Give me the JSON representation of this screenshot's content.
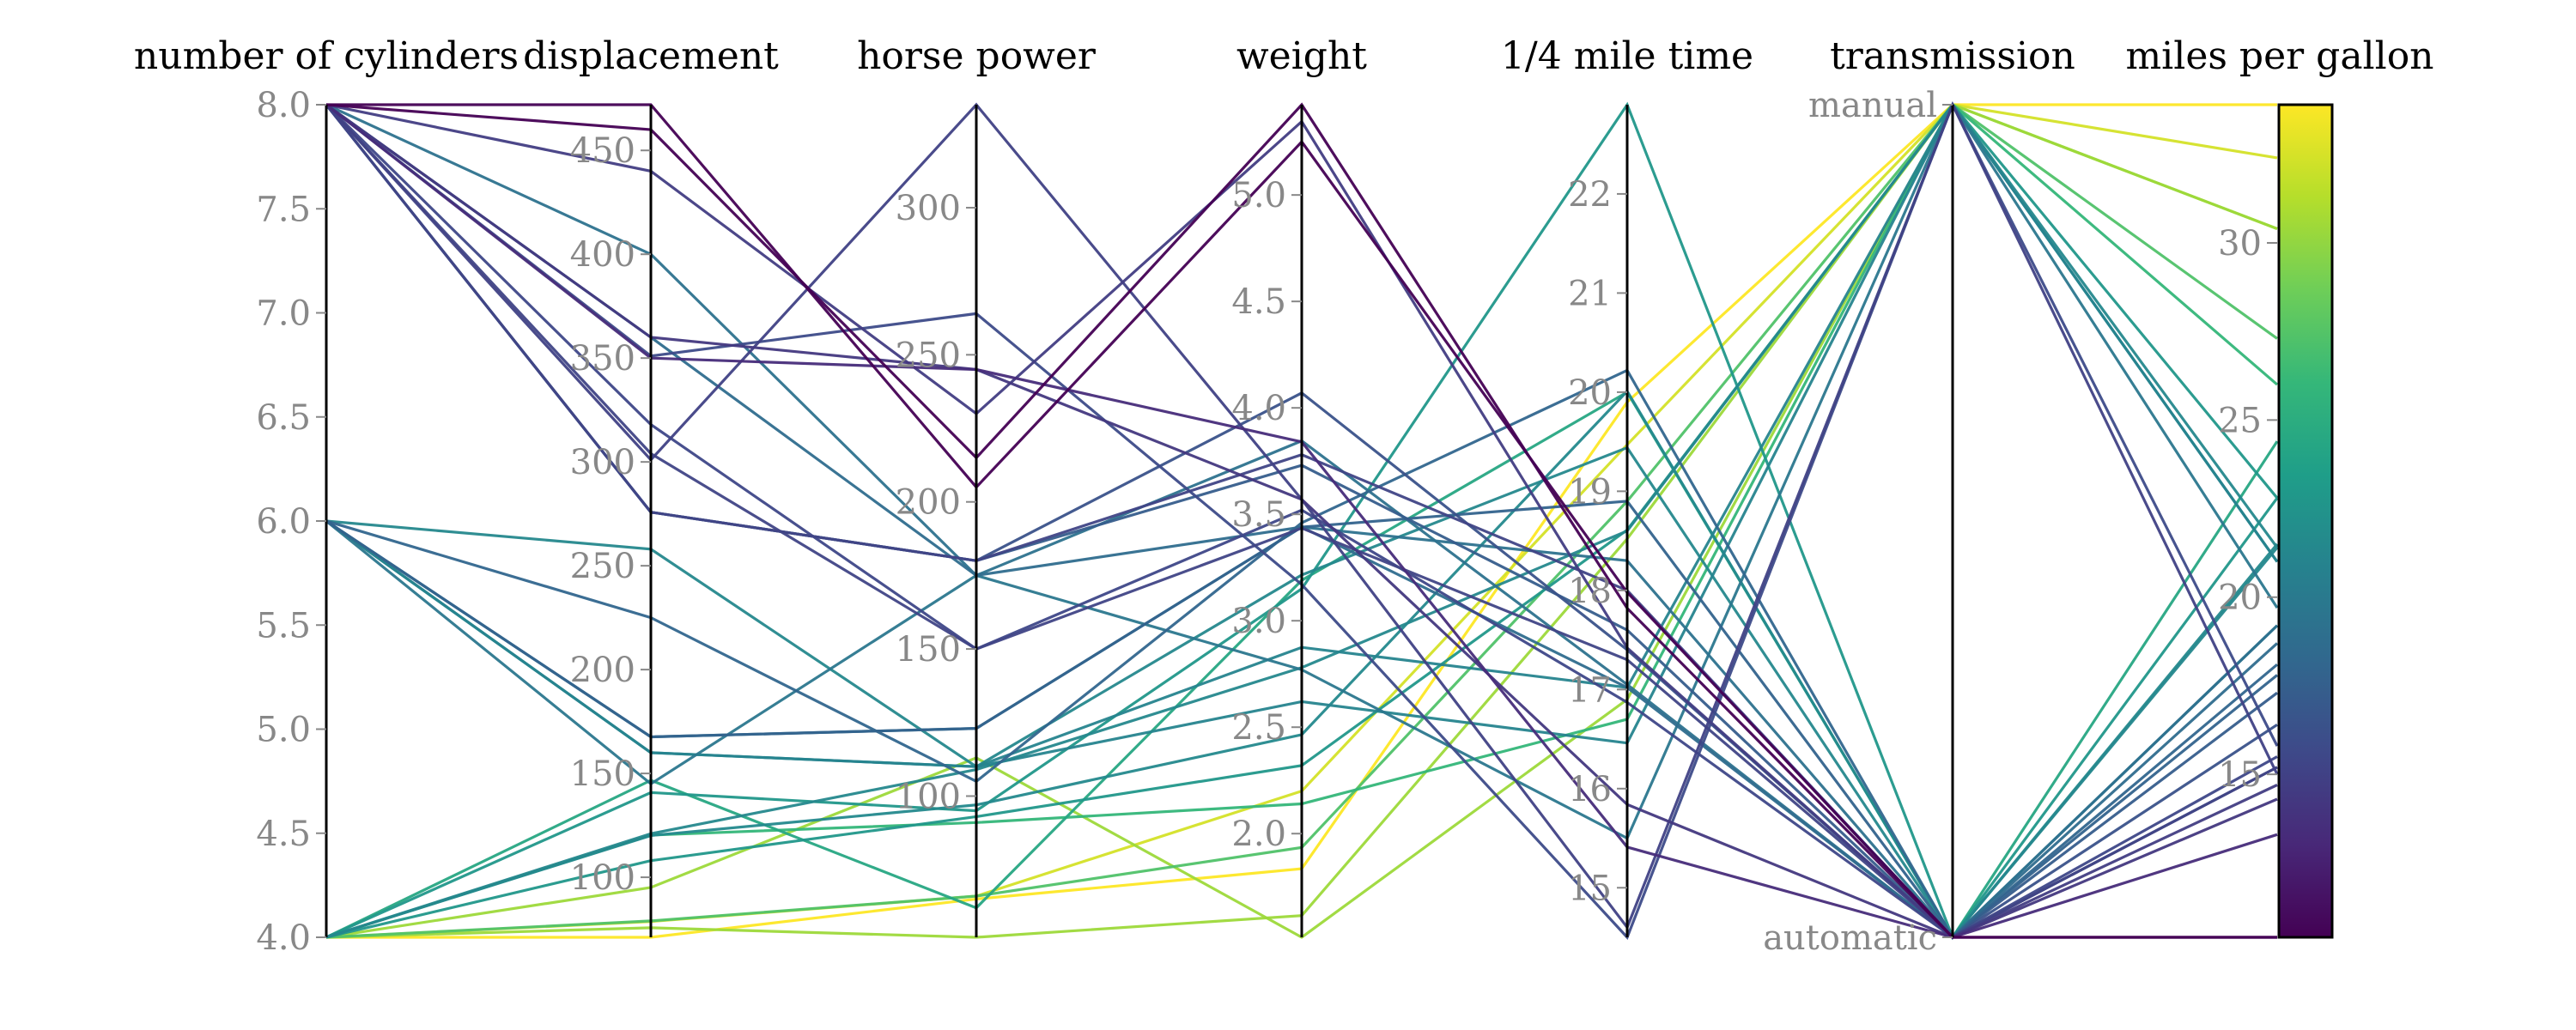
{
  "chart_data": {
    "type": "parallel_coordinates",
    "title": "",
    "axes": [
      {
        "key": "cyl",
        "label": "number of cylinders",
        "range": [
          4.0,
          8.0
        ],
        "ticks": [
          4.0,
          4.5,
          5.0,
          5.5,
          6.0,
          6.5,
          7.0,
          7.5,
          8.0
        ],
        "tick_labels": [
          "4.0",
          "4.5",
          "5.0",
          "5.5",
          "6.0",
          "6.5",
          "7.0",
          "7.5",
          "8.0"
        ]
      },
      {
        "key": "disp",
        "label": "displacement",
        "range": [
          71.1,
          472.0
        ],
        "ticks": [
          100,
          150,
          200,
          250,
          300,
          350,
          400,
          450
        ],
        "tick_labels": [
          "100",
          "150",
          "200",
          "250",
          "300",
          "350",
          "400",
          "450"
        ]
      },
      {
        "key": "hp",
        "label": "horse power",
        "range": [
          52,
          335
        ],
        "ticks": [
          100,
          150,
          200,
          250,
          300
        ],
        "tick_labels": [
          "100",
          "150",
          "200",
          "250",
          "300"
        ]
      },
      {
        "key": "wt",
        "label": "weight",
        "range": [
          1.513,
          5.424
        ],
        "ticks": [
          2.0,
          2.5,
          3.0,
          3.5,
          4.0,
          4.5,
          5.0
        ],
        "tick_labels": [
          "2.0",
          "2.5",
          "3.0",
          "3.5",
          "4.0",
          "4.5",
          "5.0"
        ]
      },
      {
        "key": "qsec",
        "label": "1/4 mile time",
        "range": [
          14.5,
          22.9
        ],
        "ticks": [
          15,
          16,
          17,
          18,
          19,
          20,
          21,
          22
        ],
        "tick_labels": [
          "15",
          "16",
          "17",
          "18",
          "19",
          "20",
          "21",
          "22"
        ]
      },
      {
        "key": "am",
        "label": "transmission",
        "range": [
          0,
          1
        ],
        "ticks": [
          0,
          1
        ],
        "tick_labels": [
          "automatic",
          "manual"
        ]
      },
      {
        "key": "mpg",
        "label": "miles per gallon",
        "range": [
          10.4,
          33.9
        ],
        "ticks": [
          15,
          20,
          25,
          30
        ],
        "tick_labels": [
          "15",
          "20",
          "25",
          "30"
        ]
      }
    ],
    "color_by": "mpg",
    "colormap": [
      "#440154",
      "#482878",
      "#3e4989",
      "#31688e",
      "#26828e",
      "#1f9e89",
      "#35b779",
      "#6ece58",
      "#b5de2b",
      "#fde725"
    ],
    "records": [
      {
        "cyl": 6,
        "disp": 160.0,
        "hp": 110,
        "wt": 2.62,
        "qsec": 16.46,
        "am": 1,
        "mpg": 21.0
      },
      {
        "cyl": 6,
        "disp": 160.0,
        "hp": 110,
        "wt": 2.875,
        "qsec": 17.02,
        "am": 1,
        "mpg": 21.0
      },
      {
        "cyl": 4,
        "disp": 108.0,
        "hp": 93,
        "wt": 2.32,
        "qsec": 18.61,
        "am": 1,
        "mpg": 22.8
      },
      {
        "cyl": 6,
        "disp": 258.0,
        "hp": 110,
        "wt": 3.215,
        "qsec": 19.44,
        "am": 0,
        "mpg": 21.4
      },
      {
        "cyl": 8,
        "disp": 360.0,
        "hp": 175,
        "wt": 3.44,
        "qsec": 17.02,
        "am": 0,
        "mpg": 18.7
      },
      {
        "cyl": 6,
        "disp": 225.0,
        "hp": 105,
        "wt": 3.46,
        "qsec": 20.22,
        "am": 0,
        "mpg": 18.1
      },
      {
        "cyl": 8,
        "disp": 360.0,
        "hp": 245,
        "wt": 3.57,
        "qsec": 15.84,
        "am": 0,
        "mpg": 14.3
      },
      {
        "cyl": 4,
        "disp": 146.7,
        "hp": 62,
        "wt": 3.19,
        "qsec": 20.0,
        "am": 0,
        "mpg": 24.4
      },
      {
        "cyl": 4,
        "disp": 140.8,
        "hp": 95,
        "wt": 3.15,
        "qsec": 22.9,
        "am": 0,
        "mpg": 22.8
      },
      {
        "cyl": 6,
        "disp": 167.6,
        "hp": 123,
        "wt": 3.44,
        "qsec": 18.3,
        "am": 0,
        "mpg": 19.2
      },
      {
        "cyl": 6,
        "disp": 167.6,
        "hp": 123,
        "wt": 3.44,
        "qsec": 18.9,
        "am": 0,
        "mpg": 17.8
      },
      {
        "cyl": 8,
        "disp": 275.8,
        "hp": 180,
        "wt": 4.07,
        "qsec": 17.4,
        "am": 0,
        "mpg": 16.4
      },
      {
        "cyl": 8,
        "disp": 275.8,
        "hp": 180,
        "wt": 3.73,
        "qsec": 17.6,
        "am": 0,
        "mpg": 17.3
      },
      {
        "cyl": 8,
        "disp": 275.8,
        "hp": 180,
        "wt": 3.78,
        "qsec": 18.0,
        "am": 0,
        "mpg": 15.2
      },
      {
        "cyl": 8,
        "disp": 472.0,
        "hp": 205,
        "wt": 5.25,
        "qsec": 17.98,
        "am": 0,
        "mpg": 10.4
      },
      {
        "cyl": 8,
        "disp": 460.0,
        "hp": 215,
        "wt": 5.424,
        "qsec": 17.82,
        "am": 0,
        "mpg": 10.4
      },
      {
        "cyl": 8,
        "disp": 440.0,
        "hp": 230,
        "wt": 5.345,
        "qsec": 17.42,
        "am": 0,
        "mpg": 14.7
      },
      {
        "cyl": 4,
        "disp": 78.7,
        "hp": 66,
        "wt": 2.2,
        "qsec": 19.47,
        "am": 1,
        "mpg": 32.4
      },
      {
        "cyl": 4,
        "disp": 75.7,
        "hp": 52,
        "wt": 1.615,
        "qsec": 18.52,
        "am": 1,
        "mpg": 30.4
      },
      {
        "cyl": 4,
        "disp": 71.1,
        "hp": 65,
        "wt": 1.835,
        "qsec": 19.9,
        "am": 1,
        "mpg": 33.9
      },
      {
        "cyl": 4,
        "disp": 120.1,
        "hp": 97,
        "wt": 2.465,
        "qsec": 20.01,
        "am": 0,
        "mpg": 21.5
      },
      {
        "cyl": 8,
        "disp": 318.0,
        "hp": 150,
        "wt": 3.52,
        "qsec": 16.87,
        "am": 0,
        "mpg": 15.5
      },
      {
        "cyl": 8,
        "disp": 304.0,
        "hp": 150,
        "wt": 3.435,
        "qsec": 17.3,
        "am": 0,
        "mpg": 15.2
      },
      {
        "cyl": 8,
        "disp": 350.0,
        "hp": 245,
        "wt": 3.84,
        "qsec": 15.41,
        "am": 0,
        "mpg": 13.3
      },
      {
        "cyl": 8,
        "disp": 400.0,
        "hp": 175,
        "wt": 3.845,
        "qsec": 17.05,
        "am": 0,
        "mpg": 19.2
      },
      {
        "cyl": 4,
        "disp": 79.0,
        "hp": 66,
        "wt": 1.935,
        "qsec": 18.9,
        "am": 1,
        "mpg": 27.3
      },
      {
        "cyl": 4,
        "disp": 120.3,
        "hp": 91,
        "wt": 2.14,
        "qsec": 16.7,
        "am": 1,
        "mpg": 26.0
      },
      {
        "cyl": 4,
        "disp": 95.1,
        "hp": 113,
        "wt": 1.513,
        "qsec": 16.9,
        "am": 1,
        "mpg": 30.4
      },
      {
        "cyl": 8,
        "disp": 351.0,
        "hp": 264,
        "wt": 3.17,
        "qsec": 14.5,
        "am": 1,
        "mpg": 15.8
      },
      {
        "cyl": 6,
        "disp": 145.0,
        "hp": 175,
        "wt": 2.77,
        "qsec": 15.5,
        "am": 1,
        "mpg": 19.7
      },
      {
        "cyl": 8,
        "disp": 301.0,
        "hp": 335,
        "wt": 3.57,
        "qsec": 14.6,
        "am": 1,
        "mpg": 15.0
      },
      {
        "cyl": 4,
        "disp": 121.0,
        "hp": 109,
        "wt": 2.78,
        "qsec": 18.6,
        "am": 1,
        "mpg": 21.4
      }
    ]
  }
}
